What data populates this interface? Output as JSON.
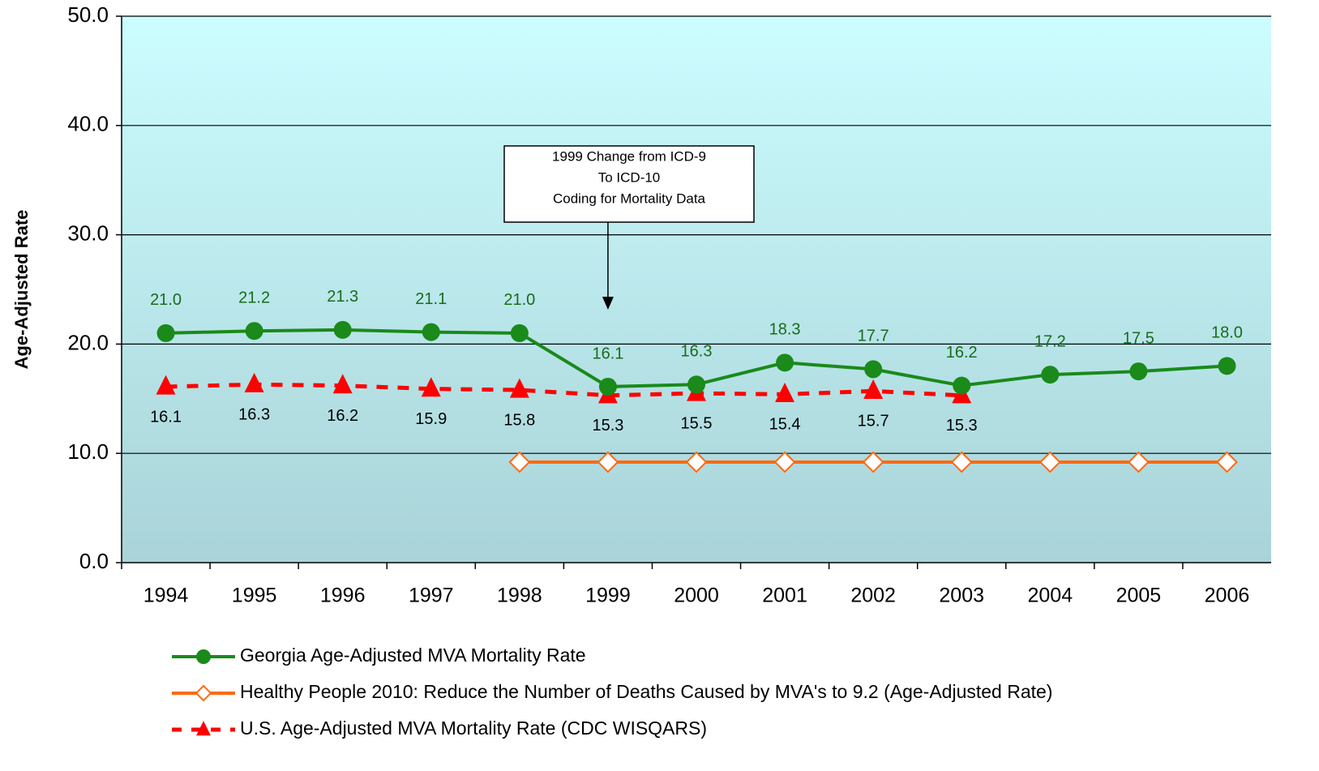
{
  "chart_data": {
    "type": "line",
    "y_label": "Age-Adjusted Rate",
    "categories": [
      "1994",
      "1995",
      "1996",
      "1997",
      "1998",
      "1999",
      "2000",
      "2001",
      "2002",
      "2003",
      "2004",
      "2005",
      "2006"
    ],
    "ylim": [
      0,
      50
    ],
    "yticks": [
      {
        "value": 0,
        "label": "0.0"
      },
      {
        "value": 10,
        "label": "10.0"
      },
      {
        "value": 20,
        "label": "20.0"
      },
      {
        "value": 30,
        "label": "30.0"
      },
      {
        "value": 40,
        "label": "40.0"
      },
      {
        "value": 50,
        "label": "50.0"
      }
    ],
    "grid": true,
    "annotation": [
      "1999 Change from ICD-9",
      "To ICD-10",
      "Coding for Mortality Data"
    ],
    "series": [
      {
        "name": "Georgia Age-Adjusted MVA Mortality Rate",
        "color": "#1a8a1a",
        "marker": "circle",
        "dashed": false,
        "label_position": "above",
        "label_color": "#1a6b1a",
        "values": [
          21.0,
          21.2,
          21.3,
          21.1,
          21.0,
          16.1,
          16.3,
          18.3,
          17.7,
          16.2,
          17.2,
          17.5,
          18.0
        ],
        "value_labels": [
          "21.0",
          "21.2",
          "21.3",
          "21.1",
          "21.0",
          "16.1",
          "16.3",
          "18.3",
          "17.7",
          "16.2",
          "17.2",
          "17.5",
          "18.0"
        ]
      },
      {
        "name": "Healthy People 2010: Reduce the Number of Deaths Caused by MVA's to 9.2 (Age-Adjusted Rate)",
        "color": "#ff6a13",
        "marker": "diamond",
        "dashed": false,
        "values": [
          null,
          null,
          null,
          null,
          9.2,
          9.2,
          9.2,
          9.2,
          9.2,
          9.2,
          9.2,
          9.2,
          9.2
        ]
      },
      {
        "name": "U.S. Age-Adjusted MVA Mortality Rate (CDC WISQARS)",
        "color": "#ff0000",
        "marker": "triangle",
        "dashed": true,
        "label_position": "below",
        "label_color": "#000000",
        "values": [
          16.1,
          16.3,
          16.2,
          15.9,
          15.8,
          15.3,
          15.5,
          15.4,
          15.7,
          15.3,
          null,
          null,
          null
        ],
        "value_labels": [
          "16.1",
          "16.3",
          "16.2",
          "15.9",
          "15.8",
          "15.3",
          "15.5",
          "15.4",
          "15.7",
          "15.3",
          null,
          null,
          null
        ]
      }
    ]
  }
}
